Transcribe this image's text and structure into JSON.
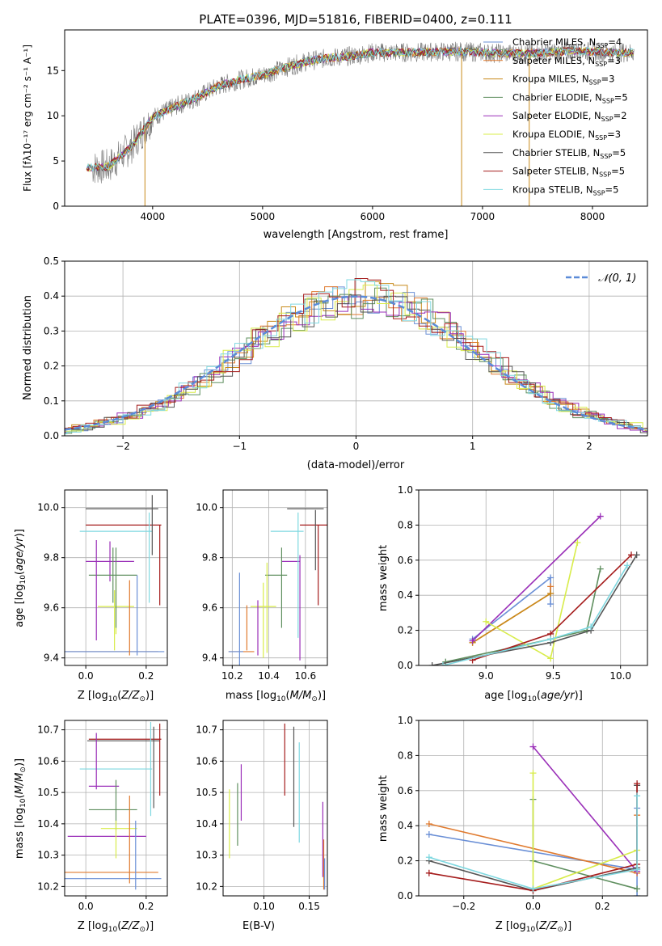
{
  "colors": {
    "Chabrier MILES": "#6a8fd6",
    "Salpeter MILES": "#e07a2e",
    "Kroupa MILES": "#c88a1a",
    "Chabrier ELODIE": "#5f8f5f",
    "Salpeter ELODIE": "#9a2fb8",
    "Kroupa ELODIE": "#d8ec4a",
    "Chabrier STELIB": "#555555",
    "Salpeter STELIB": "#a51c1c",
    "Kroupa STELIB": "#7fd8e0"
  },
  "chart_data": [
    {
      "id": "spectrum",
      "type": "line",
      "title": "PLATE=0396, MJD=51816, FIBERID=0400, z=0.111",
      "xlabel": "wavelength [Angstrom, rest frame]",
      "ylabel": "Flux [fλ10⁻¹⁷ erg cm⁻² s⁻¹ A⁻¹]",
      "xlim": [
        3200,
        8500
      ],
      "ylim": [
        0,
        19.5
      ],
      "xticks": [
        4000,
        5000,
        6000,
        7000,
        8000
      ],
      "yticks": [
        0,
        5,
        10,
        15
      ],
      "legend_position": "top-right",
      "legend": [
        {
          "label": "Chabrier MILES, N",
          "sub": "SSP",
          "tail": "=4"
        },
        {
          "label": "Salpeter MILES, N",
          "sub": "SSP",
          "tail": "=3"
        },
        {
          "label": "Kroupa MILES, N",
          "sub": "SSP",
          "tail": "=3"
        },
        {
          "label": "Chabrier ELODIE, N",
          "sub": "SSP",
          "tail": "=5"
        },
        {
          "label": "Salpeter ELODIE, N",
          "sub": "SSP",
          "tail": "=2"
        },
        {
          "label": "Kroupa ELODIE, N",
          "sub": "SSP",
          "tail": "=3"
        },
        {
          "label": "Chabrier STELIB, N",
          "sub": "SSP",
          "tail": "=5"
        },
        {
          "label": "Salpeter STELIB, N",
          "sub": "SSP",
          "tail": "=5"
        },
        {
          "label": "Kroupa STELIB, N",
          "sub": "SSP",
          "tail": "=5"
        }
      ],
      "continuum": {
        "x": [
          3400,
          3600,
          3800,
          4000,
          4200,
          4400,
          4600,
          4800,
          5000,
          5200,
          5400,
          5600,
          5800,
          6000,
          6200,
          6400,
          6600,
          6800,
          7000,
          7200,
          7400,
          7600,
          7800,
          8000,
          8200,
          8400
        ],
        "y": [
          4.2,
          4.4,
          6.5,
          9.8,
          11.0,
          12.0,
          13.3,
          14.0,
          14.5,
          15.3,
          16.0,
          16.4,
          16.6,
          17.0,
          17.0,
          17.0,
          17.1,
          17.1,
          17.0,
          16.9,
          16.9,
          17.0,
          17.2,
          17.1,
          17.0,
          17.0
        ]
      }
    },
    {
      "id": "residuals",
      "type": "line",
      "xlabel": "(data-model)/error",
      "ylabel": "Normed distribution",
      "xlim": [
        -2.5,
        2.5
      ],
      "ylim": [
        0,
        0.5
      ],
      "xticks": [
        -2,
        -1,
        0,
        1,
        2
      ],
      "yticks": [
        0.0,
        0.1,
        0.2,
        0.3,
        0.4,
        0.5
      ],
      "legend_position": "top-right",
      "legend": [
        {
          "label": "𝒩(0, 1)"
        }
      ]
    },
    {
      "id": "age-vs-Z",
      "type": "scatter",
      "xlabel": "Z [log10(Z/Z⊙)]",
      "ylabel": "age  [log10(age/yr)]",
      "xlim": [
        -0.07,
        0.27
      ],
      "ylim": [
        9.37,
        10.07
      ],
      "xticks": [
        0.0,
        0.2
      ],
      "yticks": [
        9.4,
        9.6,
        9.8,
        10.0
      ],
      "points": [
        {
          "model": "Chabrier STELIB",
          "x": 0.12,
          "xerr": 0.12,
          "y": 9.995,
          "yerr": 0.0
        },
        {
          "model": "Salpeter STELIB",
          "x": 0.125,
          "xerr": 0.125,
          "y": 9.93,
          "yerr": 0.0
        },
        {
          "model": "Kroupa STELIB",
          "x": 0.1,
          "xerr": 0.12,
          "y": 9.905,
          "yerr": 0.0
        },
        {
          "model": "Salpeter ELODIE",
          "x": 0.08,
          "xerr": 0.08,
          "y": 9.785,
          "yerr": 0.08
        },
        {
          "model": "Chabrier ELODIE",
          "x": 0.09,
          "xerr": 0.08,
          "y": 9.73,
          "yerr": 0.11
        },
        {
          "model": "Kroupa ELODIE",
          "x": 0.1,
          "xerr": 0.06,
          "y": 9.605,
          "yerr": 0.11
        },
        {
          "model": "Salpeter MILES",
          "x": 0.07,
          "xerr": 0.17,
          "y": 9.425,
          "yerr": 0.0
        },
        {
          "model": "Chabrier MILES",
          "x": 0.09,
          "xerr": 0.17,
          "y": 9.425,
          "yerr": 0.0
        }
      ],
      "errorbars_only": [
        {
          "model": "Chabrier STELIB",
          "x": 0.22,
          "y": 9.93,
          "yerr": 0.12
        },
        {
          "model": "Salpeter STELIB",
          "x": 0.245,
          "y": 9.77,
          "yerr": 0.16
        },
        {
          "model": "Kroupa STELIB",
          "x": 0.21,
          "y": 9.8,
          "yerr": 0.18
        },
        {
          "model": "Salpeter ELODIE",
          "x": 0.035,
          "y": 9.67,
          "yerr": 0.2
        },
        {
          "model": "Chabrier ELODIE",
          "x": 0.1,
          "y": 9.68,
          "yerr": 0.16
        },
        {
          "model": "Kroupa ELODIE",
          "x": 0.095,
          "y": 9.55,
          "yerr": 0.12
        },
        {
          "model": "Salpeter MILES",
          "x": 0.145,
          "y": 9.56,
          "yerr": 0.15
        },
        {
          "model": "Chabrier MILES",
          "x": 0.17,
          "y": 9.57,
          "yerr": 0.16
        }
      ]
    },
    {
      "id": "age-vs-mass",
      "type": "scatter",
      "xlabel": "mass [log10(M/M⊙)]",
      "xlim": [
        10.15,
        10.72
      ],
      "ylim": [
        9.37,
        10.07
      ],
      "xticks": [
        10.2,
        10.4,
        10.6
      ],
      "yticks": [
        9.4,
        9.6,
        9.8,
        10.0
      ],
      "points": [
        {
          "model": "Chabrier STELIB",
          "x": 10.6,
          "xerr": 0.1,
          "y": 9.995,
          "yerr": 0.0
        },
        {
          "model": "Salpeter STELIB",
          "x": 10.65,
          "xerr": 0.08,
          "y": 9.93,
          "yerr": 0.0
        },
        {
          "model": "Kroupa STELIB",
          "x": 10.5,
          "xerr": 0.09,
          "y": 9.905,
          "yerr": 0.0
        },
        {
          "model": "Salpeter ELODIE",
          "x": 10.52,
          "xerr": 0.05,
          "y": 9.785,
          "yerr": 0.0
        },
        {
          "model": "Chabrier ELODIE",
          "x": 10.44,
          "xerr": 0.06,
          "y": 9.73,
          "yerr": 0.0
        },
        {
          "model": "Kroupa ELODIE",
          "x": 10.37,
          "xerr": 0.07,
          "y": 9.605,
          "yerr": 0.0
        },
        {
          "model": "Salpeter MILES",
          "x": 10.25,
          "xerr": 0.07,
          "y": 9.425,
          "yerr": 0.0
        },
        {
          "model": "Chabrier MILES",
          "x": 10.22,
          "xerr": 0.04,
          "y": 9.425,
          "yerr": 0.0
        }
      ],
      "errorbars_only": [
        {
          "model": "Salpeter STELIB",
          "x": 10.67,
          "y": 9.77,
          "yerr": 0.16
        },
        {
          "model": "Chabrier STELIB",
          "x": 10.655,
          "y": 9.87,
          "yerr": 0.12
        },
        {
          "model": "Kroupa STELIB",
          "x": 10.56,
          "y": 9.73,
          "yerr": 0.25
        },
        {
          "model": "Salpeter ELODIE",
          "x": 10.57,
          "y": 9.6,
          "yerr": 0.21
        },
        {
          "model": "Chabrier ELODIE",
          "x": 10.47,
          "y": 9.68,
          "yerr": 0.16
        },
        {
          "model": "Kroupa ELODIE",
          "x": 10.39,
          "y": 9.6,
          "yerr": 0.18
        },
        {
          "model": "Kroupa ELODIE",
          "x": 10.37,
          "y": 9.55,
          "yerr": 0.15
        },
        {
          "model": "Salpeter MILES",
          "x": 10.28,
          "y": 9.52,
          "yerr": 0.09
        },
        {
          "model": "Chabrier MILES",
          "x": 10.24,
          "y": 9.54,
          "yerr": 0.2
        },
        {
          "model": "Salpeter ELODIE",
          "x": 10.34,
          "y": 9.52,
          "yerr": 0.11
        }
      ]
    },
    {
      "id": "weight-vs-age",
      "type": "line",
      "xlabel": "age  [log10(age/yr)]",
      "ylabel": "mass weight",
      "xlim": [
        8.5,
        10.2
      ],
      "ylim": [
        0,
        1
      ],
      "xticks": [
        9.0,
        9.5,
        10.0
      ],
      "yticks": [
        0.0,
        0.2,
        0.4,
        0.6,
        0.8,
        1.0
      ],
      "series": [
        {
          "model": "Chabrier MILES",
          "x": [
            8.9,
            9.48,
            9.48
          ],
          "y": [
            0.15,
            0.5,
            0.35
          ]
        },
        {
          "model": "Salpeter MILES",
          "x": [
            8.9,
            9.48,
            9.48
          ],
          "y": [
            0.13,
            0.41,
            0.45
          ]
        },
        {
          "model": "Kroupa MILES",
          "x": [
            8.9,
            9.48
          ],
          "y": [
            0.13,
            0.41
          ]
        },
        {
          "model": "Chabrier ELODIE",
          "x": [
            8.7,
            9.48,
            9.75,
            9.85
          ],
          "y": [
            0.02,
            0.15,
            0.2,
            0.55
          ]
        },
        {
          "model": "Salpeter ELODIE",
          "x": [
            8.9,
            9.85
          ],
          "y": [
            0.14,
            0.85
          ]
        },
        {
          "model": "Kroupa ELODIE",
          "x": [
            9.0,
            9.48,
            9.68
          ],
          "y": [
            0.25,
            0.04,
            0.7
          ]
        },
        {
          "model": "Chabrier STELIB",
          "x": [
            8.6,
            9.48,
            9.78,
            10.12
          ],
          "y": [
            0.0,
            0.13,
            0.2,
            0.63
          ]
        },
        {
          "model": "Salpeter STELIB",
          "x": [
            8.9,
            9.48,
            10.08
          ],
          "y": [
            0.03,
            0.18,
            0.63
          ]
        },
        {
          "model": "Kroupa STELIB",
          "x": [
            8.68,
            9.48,
            9.78,
            10.05
          ],
          "y": [
            0.0,
            0.15,
            0.22,
            0.57
          ]
        }
      ]
    },
    {
      "id": "mass-vs-Z",
      "type": "scatter",
      "xlabel": "Z [log10(Z/Z⊙)]",
      "ylabel": "mass [log10(M/M⊙)]",
      "xlim": [
        -0.07,
        0.27
      ],
      "ylim": [
        10.17,
        10.73
      ],
      "xticks": [
        0.0,
        0.2
      ],
      "yticks": [
        10.2,
        10.3,
        10.4,
        10.5,
        10.6,
        10.7
      ],
      "points": [
        {
          "model": "Salpeter STELIB",
          "x": 0.13,
          "xerr": 0.12,
          "y": 10.67,
          "yerr": 0.0
        },
        {
          "model": "Chabrier STELIB",
          "x": 0.125,
          "xerr": 0.12,
          "y": 10.665,
          "yerr": 0.0
        },
        {
          "model": "Kroupa STELIB",
          "x": 0.1,
          "xerr": 0.12,
          "y": 10.575,
          "yerr": 0.0
        },
        {
          "model": "Salpeter ELODIE",
          "x": 0.06,
          "xerr": 0.05,
          "y": 10.52,
          "yerr": 0.0
        },
        {
          "model": "Chabrier ELODIE",
          "x": 0.09,
          "xerr": 0.08,
          "y": 10.445,
          "yerr": 0.0
        },
        {
          "model": "Kroupa ELODIE",
          "x": 0.11,
          "xerr": 0.06,
          "y": 10.385,
          "yerr": 0.0
        },
        {
          "model": "Salpeter MILES",
          "x": 0.08,
          "xerr": 0.16,
          "y": 10.245,
          "yerr": 0.0
        },
        {
          "model": "Chabrier MILES",
          "x": 0.085,
          "xerr": 0.165,
          "y": 10.225,
          "yerr": 0.0
        },
        {
          "model": "Salpeter ELODIE",
          "x": 0.07,
          "xerr": 0.13,
          "y": 10.36,
          "yerr": 0.0
        }
      ],
      "errorbars_only": [
        {
          "model": "Salpeter STELIB",
          "x": 0.245,
          "y": 10.605,
          "yerr": 0.115
        },
        {
          "model": "Chabrier STELIB",
          "x": 0.225,
          "y": 10.58,
          "yerr": 0.13
        },
        {
          "model": "Kroupa STELIB",
          "x": 0.215,
          "y": 10.575,
          "yerr": 0.15
        },
        {
          "model": "Salpeter ELODIE",
          "x": 0.035,
          "y": 10.6,
          "yerr": 0.09
        },
        {
          "model": "Chabrier ELODIE",
          "x": 0.1,
          "y": 10.46,
          "yerr": 0.08
        },
        {
          "model": "Kroupa ELODIE",
          "x": 0.1,
          "y": 10.35,
          "yerr": 0.06
        },
        {
          "model": "Salpeter MILES",
          "x": 0.145,
          "y": 10.35,
          "yerr": 0.14
        },
        {
          "model": "Chabrier MILES",
          "x": 0.165,
          "y": 10.3,
          "yerr": 0.11
        }
      ]
    },
    {
      "id": "mass-vs-EBV",
      "type": "scatter",
      "xlabel": "E(B-V)",
      "xlim": [
        0.055,
        0.17
      ],
      "ylim": [
        10.17,
        10.73
      ],
      "xticks": [
        0.1,
        0.15
      ],
      "yticks": [
        10.2,
        10.3,
        10.4,
        10.5,
        10.6,
        10.7
      ],
      "errorbars_only": [
        {
          "model": "Kroupa ELODIE",
          "x": 0.062,
          "y": 10.4,
          "yerr": 0.11
        },
        {
          "model": "Chabrier ELODIE",
          "x": 0.071,
          "y": 10.43,
          "yerr": 0.1
        },
        {
          "model": "Salpeter ELODIE",
          "x": 0.075,
          "y": 10.5,
          "yerr": 0.09
        },
        {
          "model": "Salpeter STELIB",
          "x": 0.123,
          "y": 10.605,
          "yerr": 0.115
        },
        {
          "model": "Chabrier STELIB",
          "x": 0.133,
          "y": 10.55,
          "yerr": 0.16
        },
        {
          "model": "Kroupa STELIB",
          "x": 0.139,
          "y": 10.5,
          "yerr": 0.16
        },
        {
          "model": "Salpeter ELODIE",
          "x": 0.165,
          "y": 10.35,
          "yerr": 0.12
        },
        {
          "model": "Salpeter MILES",
          "x": 0.166,
          "y": 10.27,
          "yerr": 0.08
        },
        {
          "model": "Chabrier MILES",
          "x": 0.167,
          "y": 10.24,
          "yerr": 0.05
        }
      ]
    },
    {
      "id": "weight-vs-Z",
      "type": "line",
      "xlabel": "Z [log10(Z/Z⊙)]",
      "ylabel": "mass weight",
      "xlim": [
        -0.33,
        0.33
      ],
      "ylim": [
        0,
        1
      ],
      "xticks": [
        -0.2,
        0.0,
        0.2
      ],
      "yticks": [
        0.0,
        0.2,
        0.4,
        0.6,
        0.8,
        1.0
      ],
      "series": [
        {
          "model": "Chabrier MILES",
          "x": [
            -0.3,
            0.3,
            0.3,
            0.3
          ],
          "y": [
            0.35,
            0.15,
            0.5,
            0.0
          ]
        },
        {
          "model": "Salpeter MILES",
          "x": [
            -0.3,
            0.3,
            0.3
          ],
          "y": [
            0.41,
            0.13,
            0.46
          ]
        },
        {
          "model": "Chabrier ELODIE",
          "x": [
            0.0,
            0.0,
            0.3
          ],
          "y": [
            0.55,
            0.2,
            0.04
          ]
        },
        {
          "model": "Salpeter ELODIE",
          "x": [
            0.0,
            0.3
          ],
          "y": [
            0.85,
            0.14
          ]
        },
        {
          "model": "Kroupa ELODIE",
          "x": [
            0.0,
            0.0,
            0.3
          ],
          "y": [
            0.7,
            0.04,
            0.26
          ]
        },
        {
          "model": "Chabrier STELIB",
          "x": [
            -0.3,
            0.0,
            0.3,
            0.3
          ],
          "y": [
            0.2,
            0.03,
            0.16,
            0.63
          ]
        },
        {
          "model": "Salpeter STELIB",
          "x": [
            -0.3,
            0.0,
            0.3,
            0.3
          ],
          "y": [
            0.13,
            0.03,
            0.18,
            0.64
          ]
        },
        {
          "model": "Kroupa STELIB",
          "x": [
            -0.3,
            0.0,
            0.3,
            0.3
          ],
          "y": [
            0.22,
            0.04,
            0.15,
            0.57
          ]
        }
      ]
    }
  ]
}
